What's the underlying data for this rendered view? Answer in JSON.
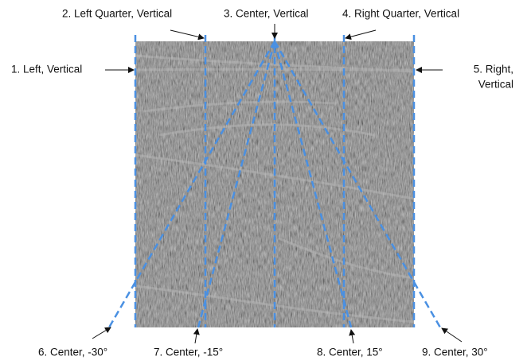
{
  "labels": [
    {
      "text": "1. Left, Vertical"
    },
    {
      "text": "2. Left Quarter, Vertical"
    },
    {
      "text": "3. Center, Vertical"
    },
    {
      "text": "4. Right Quarter, Vertical"
    },
    {
      "lines": [
        "5. Right,",
        "Vertical"
      ]
    },
    {
      "text": "6. Center, -30°"
    },
    {
      "text": "7. Center, -15°"
    },
    {
      "text": "8. Center, 15°"
    },
    {
      "text": "9. Center, 30°"
    }
  ]
}
